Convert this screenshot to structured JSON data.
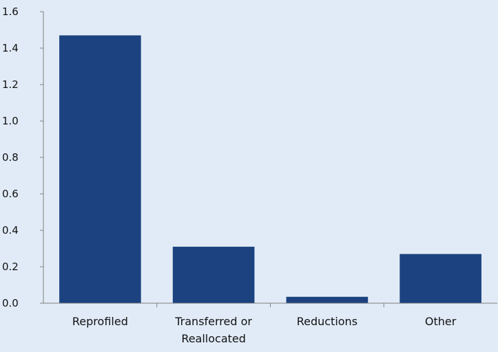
{
  "chart_data": {
    "type": "bar",
    "categories": [
      [
        "Reprofiled"
      ],
      [
        "Transferred or",
        "Reallocated"
      ],
      [
        "Reductions"
      ],
      [
        "Other"
      ]
    ],
    "values": [
      1.47,
      0.31,
      0.035,
      0.27
    ],
    "ylim": [
      0,
      1.6
    ],
    "yticks": [
      "0.0",
      "0.2",
      "0.4",
      "0.6",
      "0.8",
      "1.0",
      "1.2",
      "1.4",
      "1.6"
    ],
    "grid": false,
    "legend": "none",
    "colors": {
      "bar": "#1c4380",
      "background": "#e1ebf7",
      "axis": "#7f7f7f"
    }
  }
}
